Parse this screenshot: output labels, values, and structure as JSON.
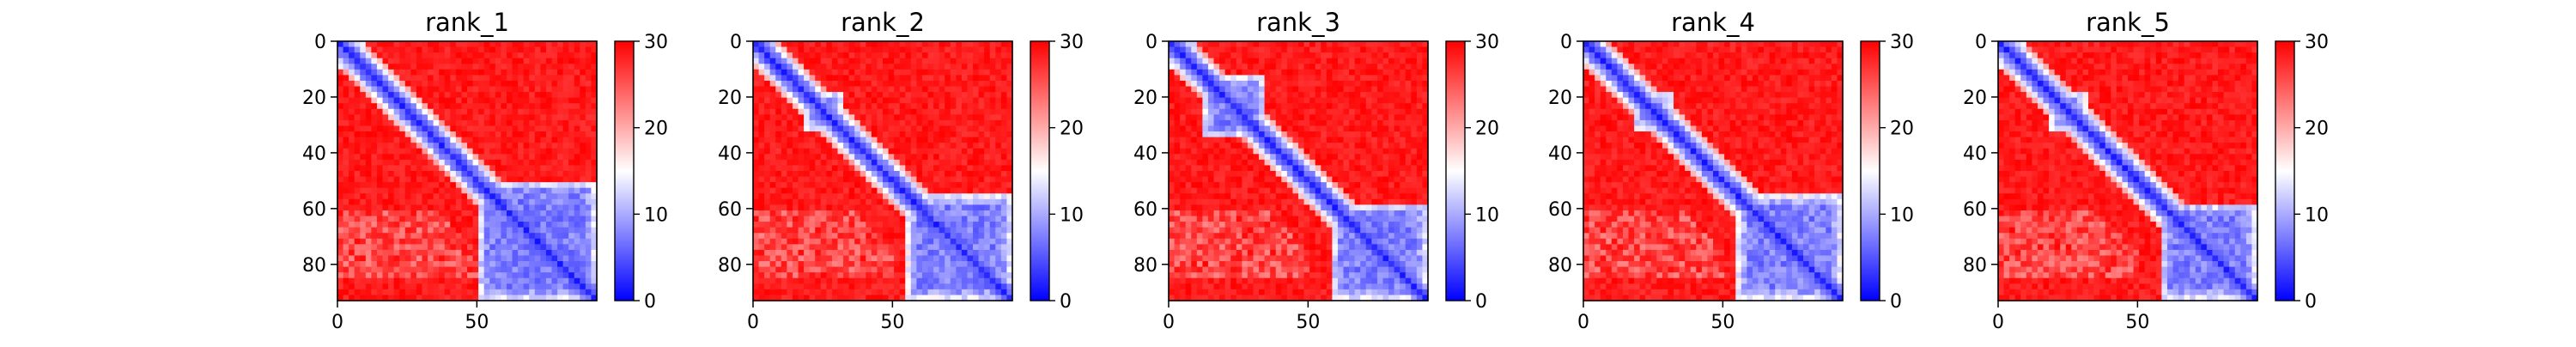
{
  "figure": {
    "background": "#ffffff"
  },
  "chart_data": [
    {
      "type": "heatmap",
      "title": "rank_1",
      "x_ticks": [
        0,
        50
      ],
      "y_ticks": [
        0,
        20,
        40,
        60,
        80
      ],
      "x_range": [
        0,
        93
      ],
      "y_range": [
        0,
        93
      ],
      "color_range": [
        0,
        30
      ],
      "colorbar_ticks": [
        0,
        10,
        20,
        30
      ],
      "colormap": "bwr",
      "colors": {
        "low": "#0000ff",
        "mid": "#ffffff",
        "high": "#ff0000"
      },
      "matrix_description": "pairwise predicted aligned error; low (blue) along diagonal and in domain blocks, high (red) off-diagonal",
      "blue_blocks": [
        [
          0,
          10
        ],
        [
          50,
          93
        ],
        [
          58,
          93
        ]
      ]
    },
    {
      "type": "heatmap",
      "title": "rank_2",
      "x_ticks": [
        0,
        50
      ],
      "y_ticks": [
        0,
        20,
        40,
        60,
        80
      ],
      "x_range": [
        0,
        93
      ],
      "y_range": [
        0,
        93
      ],
      "color_range": [
        0,
        30
      ],
      "colorbar_ticks": [
        0,
        10,
        20,
        30
      ],
      "colormap": "bwr",
      "blue_blocks": [
        [
          0,
          8
        ],
        [
          18,
          32
        ],
        [
          55,
          93
        ]
      ]
    },
    {
      "type": "heatmap",
      "title": "rank_3",
      "x_ticks": [
        0,
        50
      ],
      "y_ticks": [
        0,
        20,
        40,
        60,
        80
      ],
      "x_range": [
        0,
        93
      ],
      "y_range": [
        0,
        93
      ],
      "color_range": [
        0,
        30
      ],
      "colorbar_ticks": [
        0,
        10,
        20,
        30
      ],
      "colormap": "bwr",
      "blue_blocks": [
        [
          0,
          10
        ],
        [
          12,
          35
        ],
        [
          58,
          93
        ]
      ]
    },
    {
      "type": "heatmap",
      "title": "rank_4",
      "x_ticks": [
        0,
        50
      ],
      "y_ticks": [
        0,
        20,
        40,
        60,
        80
      ],
      "x_range": [
        0,
        93
      ],
      "y_range": [
        0,
        93
      ],
      "color_range": [
        0,
        30
      ],
      "colorbar_ticks": [
        0,
        10,
        20,
        30
      ],
      "colormap": "bwr",
      "blue_blocks": [
        [
          0,
          8
        ],
        [
          18,
          32
        ],
        [
          55,
          93
        ]
      ]
    },
    {
      "type": "heatmap",
      "title": "rank_5",
      "x_ticks": [
        0,
        50
      ],
      "y_ticks": [
        0,
        20,
        40,
        60,
        80
      ],
      "x_range": [
        0,
        93
      ],
      "y_range": [
        0,
        93
      ],
      "color_range": [
        0,
        30
      ],
      "colorbar_ticks": [
        0,
        10,
        20,
        30
      ],
      "colormap": "bwr",
      "blue_blocks": [
        [
          0,
          10
        ],
        [
          18,
          32
        ],
        [
          58,
          93
        ]
      ]
    }
  ]
}
